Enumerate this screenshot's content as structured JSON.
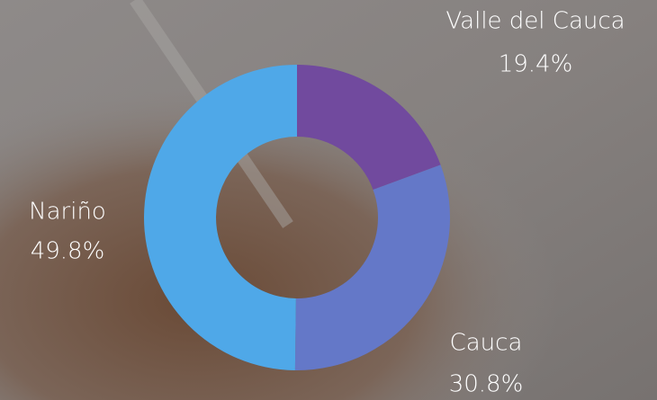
{
  "chart_data": {
    "type": "donut",
    "categories": [
      "Valle del Cauca",
      "Cauca",
      "Nariño"
    ],
    "values": [
      19.4,
      30.8,
      49.8
    ],
    "value_labels": [
      "19.4%",
      "30.8%",
      "49.8%"
    ],
    "colors": [
      "#714a9e",
      "#6478c8",
      "#4fa8e8"
    ]
  }
}
